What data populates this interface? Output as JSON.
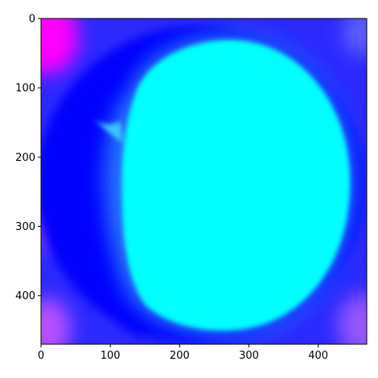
{
  "image": {
    "description_colors": {
      "background": "#0000ff",
      "disk": "#00ffff",
      "corner_accent": "#ff00ff",
      "mid_tone": "#3355ff"
    },
    "x_range": [
      0,
      470
    ],
    "y_range": [
      0,
      470
    ],
    "y_inverted": true
  },
  "axes": {
    "x_ticks": [
      {
        "value": 0,
        "label": "0"
      },
      {
        "value": 100,
        "label": "100"
      },
      {
        "value": 200,
        "label": "200"
      },
      {
        "value": 300,
        "label": "300"
      },
      {
        "value": 400,
        "label": "400"
      }
    ],
    "y_ticks": [
      {
        "value": 0,
        "label": "0"
      },
      {
        "value": 100,
        "label": "100"
      },
      {
        "value": 200,
        "label": "200"
      },
      {
        "value": 300,
        "label": "300"
      },
      {
        "value": 400,
        "label": "400"
      }
    ]
  }
}
